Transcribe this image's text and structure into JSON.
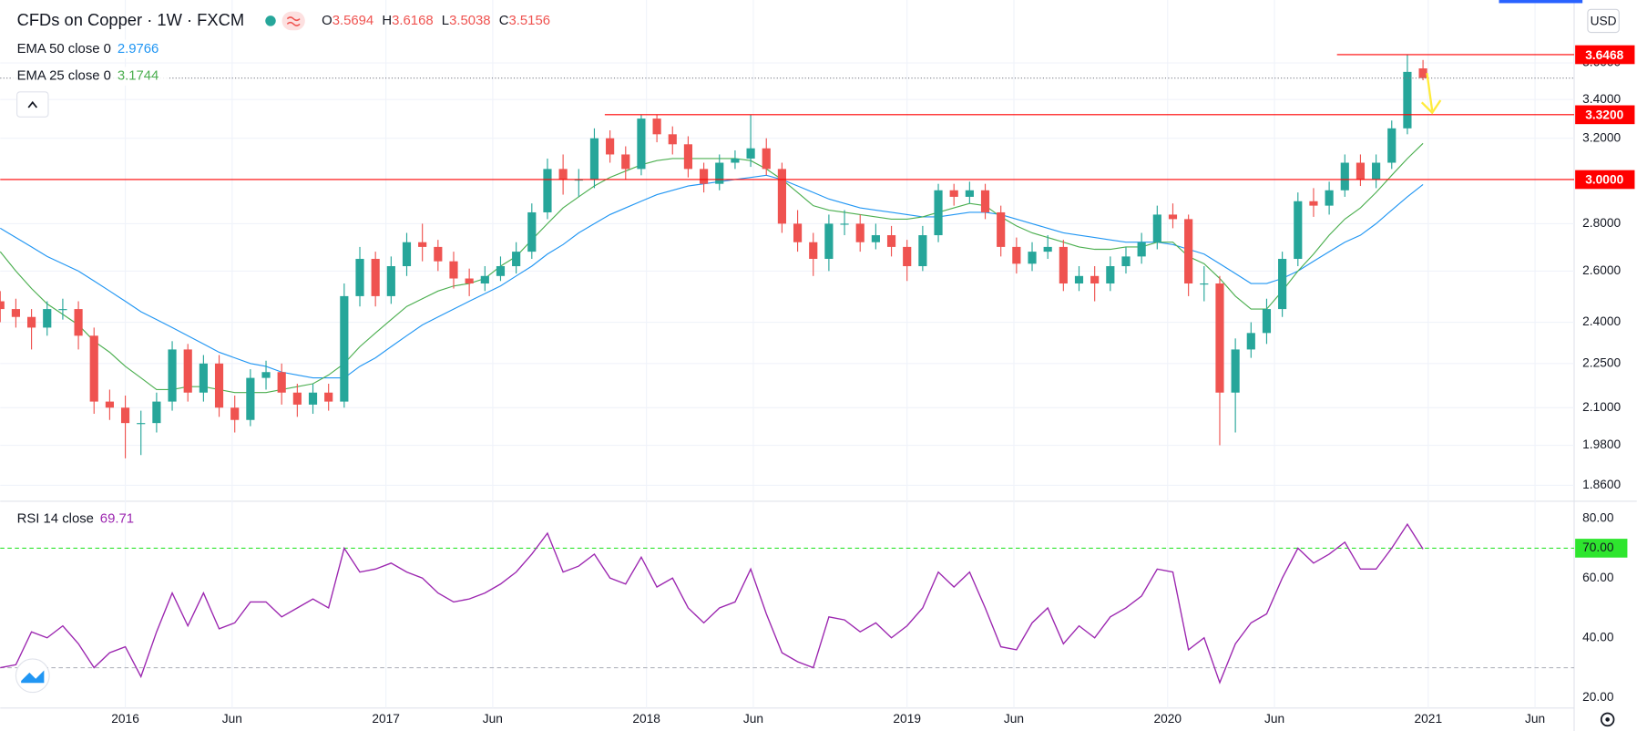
{
  "chart_data": [
    {
      "type": "candlestick",
      "title": "CFDs on Copper · 1W · FXCM",
      "currency": "USD",
      "ohlc_labels": [
        "O",
        "H",
        "L",
        "C"
      ],
      "up_color": "#26a69a",
      "down_color": "#ef5350",
      "log": true,
      "grid": true,
      "xlim": [
        2015.52,
        2021.56
      ],
      "xticks": [
        2016,
        {
          "value": 2016.41,
          "label": "Jun"
        },
        2017,
        {
          "value": 2017.41,
          "label": "Jun"
        },
        2018,
        {
          "value": 2018.41,
          "label": "Jun"
        },
        2019,
        {
          "value": 2019.41,
          "label": "Jun"
        },
        2020,
        {
          "value": 2020.41,
          "label": "Jun"
        },
        2021,
        {
          "value": 2021.41,
          "label": "Jun"
        }
      ],
      "ylim": [
        1.82,
        3.94
      ],
      "yticks": [
        {
          "value": 3.6,
          "label": "3.6000"
        },
        {
          "value": 3.4,
          "label": "3.4000"
        },
        {
          "value": 3.2,
          "label": "3.2000"
        },
        {
          "value": 3.0,
          "label": "3.0000"
        },
        {
          "value": 2.8,
          "label": "2.8000"
        },
        {
          "value": 2.6,
          "label": "2.6000"
        },
        {
          "value": 2.4,
          "label": "2.4000"
        },
        {
          "value": 2.25,
          "label": "2.2500"
        },
        {
          "value": 2.1,
          "label": "2.1000"
        },
        {
          "value": 1.98,
          "label": "1.9800"
        },
        {
          "value": 1.86,
          "label": "1.8600"
        }
      ],
      "x": [
        2015.52,
        2015.58,
        2015.64,
        2015.7,
        2015.76,
        2015.82,
        2015.88,
        2015.94,
        2016.0,
        2016.06,
        2016.12,
        2016.18,
        2016.24,
        2016.3,
        2016.36,
        2016.42,
        2016.48,
        2016.54,
        2016.6,
        2016.66,
        2016.72,
        2016.78,
        2016.84,
        2016.9,
        2016.96,
        2017.02,
        2017.08,
        2017.14,
        2017.2,
        2017.26,
        2017.32,
        2017.38,
        2017.44,
        2017.5,
        2017.56,
        2017.62,
        2017.68,
        2017.74,
        2017.8,
        2017.86,
        2017.92,
        2017.98,
        2018.04,
        2018.1,
        2018.16,
        2018.22,
        2018.28,
        2018.34,
        2018.4,
        2018.46,
        2018.52,
        2018.58,
        2018.64,
        2018.7,
        2018.76,
        2018.82,
        2018.88,
        2018.94,
        2019.0,
        2019.06,
        2019.12,
        2019.18,
        2019.24,
        2019.3,
        2019.36,
        2019.42,
        2019.48,
        2019.54,
        2019.6,
        2019.66,
        2019.72,
        2019.78,
        2019.84,
        2019.9,
        2019.96,
        2020.02,
        2020.08,
        2020.14,
        2020.2,
        2020.26,
        2020.32,
        2020.38,
        2020.44,
        2020.5,
        2020.56,
        2020.62,
        2020.68,
        2020.74,
        2020.8,
        2020.86,
        2020.92,
        2020.98
      ],
      "open": [
        2.48,
        2.45,
        2.42,
        2.38,
        2.45,
        2.45,
        2.35,
        2.12,
        2.1,
        2.05,
        2.05,
        2.12,
        2.3,
        2.15,
        2.25,
        2.1,
        2.06,
        2.2,
        2.22,
        2.15,
        2.11,
        2.15,
        2.12,
        2.5,
        2.65,
        2.5,
        2.62,
        2.72,
        2.7,
        2.64,
        2.57,
        2.55,
        2.58,
        2.62,
        2.68,
        2.85,
        3.05,
        3.0,
        3.0,
        3.2,
        3.12,
        3.05,
        3.3,
        3.22,
        3.17,
        3.05,
        2.98,
        3.08,
        3.1,
        3.15,
        3.05,
        2.8,
        2.72,
        2.65,
        2.8,
        2.8,
        2.72,
        2.75,
        2.7,
        2.62,
        2.75,
        2.95,
        2.92,
        2.95,
        2.85,
        2.7,
        2.63,
        2.68,
        2.7,
        2.55,
        2.58,
        2.55,
        2.62,
        2.66,
        2.72,
        2.84,
        2.82,
        2.55,
        2.55,
        2.15,
        2.3,
        2.36,
        2.45,
        2.65,
        2.9,
        2.88,
        2.95,
        3.08,
        3.0,
        3.08,
        3.25,
        3.5694
      ],
      "high": [
        2.52,
        2.49,
        2.45,
        2.48,
        2.49,
        2.48,
        2.38,
        2.16,
        2.14,
        2.09,
        2.15,
        2.33,
        2.32,
        2.28,
        2.28,
        2.14,
        2.23,
        2.26,
        2.25,
        2.18,
        2.18,
        2.18,
        2.55,
        2.7,
        2.68,
        2.66,
        2.76,
        2.8,
        2.73,
        2.68,
        2.61,
        2.62,
        2.66,
        2.72,
        2.89,
        3.1,
        3.12,
        3.05,
        3.25,
        3.24,
        3.16,
        3.32,
        3.32,
        3.26,
        3.21,
        3.08,
        3.12,
        3.14,
        3.32,
        3.2,
        3.08,
        2.86,
        2.76,
        2.84,
        2.86,
        2.84,
        2.8,
        2.79,
        2.73,
        2.79,
        2.98,
        2.98,
        2.99,
        2.98,
        2.88,
        2.74,
        2.72,
        2.75,
        2.73,
        2.62,
        2.62,
        2.66,
        2.7,
        2.76,
        2.88,
        2.89,
        2.84,
        2.62,
        2.58,
        2.34,
        2.4,
        2.49,
        2.68,
        2.94,
        2.96,
        2.99,
        3.12,
        3.12,
        3.12,
        3.29,
        3.6468,
        3.6168
      ],
      "low": [
        2.4,
        2.38,
        2.3,
        2.35,
        2.41,
        2.3,
        2.08,
        2.06,
        1.94,
        1.95,
        2.02,
        2.09,
        2.12,
        2.12,
        2.07,
        2.02,
        2.04,
        2.16,
        2.11,
        2.07,
        2.08,
        2.09,
        2.1,
        2.46,
        2.46,
        2.47,
        2.58,
        2.64,
        2.6,
        2.53,
        2.5,
        2.52,
        2.56,
        2.59,
        2.65,
        2.82,
        2.93,
        2.92,
        2.96,
        3.08,
        3.0,
        3.02,
        3.18,
        3.12,
        3.01,
        2.94,
        2.95,
        3.05,
        3.06,
        3.02,
        2.76,
        2.68,
        2.58,
        2.6,
        2.75,
        2.68,
        2.69,
        2.66,
        2.56,
        2.6,
        2.72,
        2.88,
        2.89,
        2.82,
        2.66,
        2.59,
        2.6,
        2.65,
        2.52,
        2.52,
        2.48,
        2.52,
        2.59,
        2.63,
        2.69,
        2.78,
        2.5,
        2.48,
        1.98,
        2.02,
        2.27,
        2.32,
        2.42,
        2.62,
        2.83,
        2.84,
        2.92,
        2.97,
        2.96,
        3.05,
        3.22,
        3.5038
      ],
      "close": [
        2.45,
        2.42,
        2.38,
        2.45,
        2.45,
        2.35,
        2.12,
        2.1,
        2.05,
        2.05,
        2.12,
        2.3,
        2.15,
        2.25,
        2.1,
        2.06,
        2.2,
        2.22,
        2.15,
        2.11,
        2.15,
        2.12,
        2.5,
        2.65,
        2.5,
        2.62,
        2.72,
        2.7,
        2.64,
        2.57,
        2.55,
        2.58,
        2.62,
        2.68,
        2.85,
        3.05,
        3.0,
        3.0,
        3.2,
        3.12,
        3.05,
        3.3,
        3.22,
        3.17,
        3.05,
        2.98,
        3.08,
        3.1,
        3.15,
        3.05,
        2.8,
        2.72,
        2.65,
        2.8,
        2.8,
        2.72,
        2.75,
        2.7,
        2.62,
        2.75,
        2.95,
        2.92,
        2.95,
        2.85,
        2.7,
        2.63,
        2.68,
        2.7,
        2.55,
        2.58,
        2.55,
        2.62,
        2.66,
        2.72,
        2.84,
        2.82,
        2.55,
        2.55,
        2.15,
        2.3,
        2.36,
        2.45,
        2.65,
        2.9,
        2.88,
        2.95,
        3.08,
        3.0,
        3.08,
        3.25,
        3.55,
        3.5156
      ],
      "series": [
        {
          "name": "EMA 50 close 0",
          "color": "#2196f3",
          "values": [
            2.78,
            2.74,
            2.7,
            2.66,
            2.63,
            2.6,
            2.56,
            2.52,
            2.48,
            2.44,
            2.41,
            2.38,
            2.35,
            2.32,
            2.29,
            2.27,
            2.25,
            2.24,
            2.22,
            2.21,
            2.2,
            2.2,
            2.2,
            2.24,
            2.27,
            2.31,
            2.35,
            2.39,
            2.42,
            2.45,
            2.48,
            2.51,
            2.54,
            2.58,
            2.62,
            2.67,
            2.71,
            2.76,
            2.8,
            2.84,
            2.87,
            2.9,
            2.93,
            2.95,
            2.97,
            2.98,
            2.99,
            3.0,
            3.01,
            3.02,
            3.0,
            2.97,
            2.94,
            2.91,
            2.89,
            2.87,
            2.86,
            2.85,
            2.84,
            2.83,
            2.83,
            2.84,
            2.85,
            2.85,
            2.84,
            2.82,
            2.8,
            2.78,
            2.76,
            2.75,
            2.74,
            2.73,
            2.72,
            2.72,
            2.72,
            2.71,
            2.69,
            2.67,
            2.63,
            2.59,
            2.55,
            2.55,
            2.57,
            2.6,
            2.64,
            2.68,
            2.72,
            2.75,
            2.8,
            2.86,
            2.92,
            2.9766
          ]
        },
        {
          "name": "EMA 25 close 0",
          "color": "#4caf50",
          "values": [
            2.68,
            2.6,
            2.53,
            2.47,
            2.43,
            2.39,
            2.33,
            2.29,
            2.24,
            2.2,
            2.16,
            2.16,
            2.17,
            2.17,
            2.16,
            2.15,
            2.15,
            2.15,
            2.16,
            2.17,
            2.18,
            2.21,
            2.25,
            2.31,
            2.36,
            2.41,
            2.46,
            2.49,
            2.52,
            2.54,
            2.55,
            2.57,
            2.62,
            2.66,
            2.73,
            2.8,
            2.87,
            2.92,
            2.97,
            3.01,
            3.04,
            3.07,
            3.09,
            3.1,
            3.1,
            3.1,
            3.1,
            3.1,
            3.09,
            3.05,
            3.0,
            2.94,
            2.88,
            2.86,
            2.85,
            2.84,
            2.83,
            2.82,
            2.82,
            2.83,
            2.85,
            2.87,
            2.89,
            2.88,
            2.83,
            2.79,
            2.76,
            2.74,
            2.72,
            2.7,
            2.69,
            2.69,
            2.7,
            2.7,
            2.72,
            2.72,
            2.66,
            2.63,
            2.57,
            2.5,
            2.45,
            2.45,
            2.52,
            2.6,
            2.67,
            2.75,
            2.82,
            2.87,
            2.94,
            3.02,
            3.1,
            3.1744
          ]
        }
      ],
      "level_color": "#ff0000",
      "levels": [
        {
          "value": 3.6468,
          "label": "3.6468",
          "from": 2020.65
        },
        {
          "value": 3.32,
          "label": "3.3200",
          "from": 2017.84
        },
        {
          "value": 3.0,
          "label": "3.0000",
          "from": 2015.52
        }
      ]
    },
    {
      "type": "line",
      "name": "RSI 14 close",
      "color": "#9c27b0",
      "ylim": [
        16.5,
        85
      ],
      "yticks": [
        {
          "value": 80,
          "label": "80.00"
        },
        {
          "value": 70,
          "label": "70.00"
        },
        {
          "value": 60,
          "label": "60.00"
        },
        {
          "value": 40,
          "label": "40.00"
        },
        {
          "value": 20,
          "label": "20.00"
        }
      ],
      "bands": [
        {
          "value": 70,
          "color": "#2ee52e"
        },
        {
          "value": 30,
          "color": "#b2b5be"
        }
      ],
      "values": [
        30,
        31,
        42,
        40,
        44,
        38,
        30,
        35,
        37,
        27,
        42,
        55,
        44,
        55,
        43,
        45,
        52,
        52,
        47,
        50,
        53,
        50,
        70,
        62,
        63,
        65,
        62,
        60,
        55,
        52,
        53,
        55,
        58,
        62,
        68,
        75,
        62,
        64,
        68,
        60,
        58,
        67,
        57,
        60,
        50,
        45,
        50,
        52,
        63,
        48,
        35,
        32,
        30,
        47,
        46,
        42,
        45,
        40,
        44,
        50,
        62,
        57,
        62,
        50,
        37,
        36,
        45,
        50,
        38,
        44,
        40,
        47,
        50,
        54,
        63,
        62,
        36,
        40,
        25,
        38,
        45,
        48,
        60,
        70,
        65,
        68,
        72,
        63,
        63,
        70,
        78,
        69.71
      ]
    }
  ]
}
